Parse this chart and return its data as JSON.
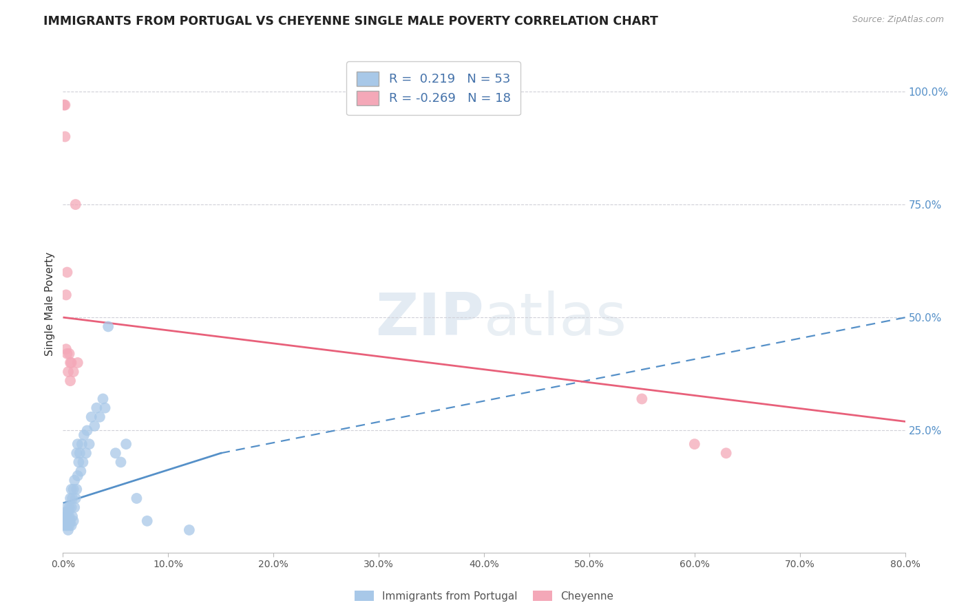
{
  "title": "IMMIGRANTS FROM PORTUGAL VS CHEYENNE SINGLE MALE POVERTY CORRELATION CHART",
  "source": "Source: ZipAtlas.com",
  "ylabel": "Single Male Poverty",
  "right_yticklabels": [
    "",
    "25.0%",
    "50.0%",
    "75.0%",
    "100.0%"
  ],
  "xlim": [
    0.0,
    0.8
  ],
  "ylim": [
    -0.02,
    1.08
  ],
  "blue_R": 0.219,
  "blue_N": 53,
  "pink_R": -0.269,
  "pink_N": 18,
  "blue_color": "#a8c8e8",
  "pink_color": "#f4a8b8",
  "trend_blue_color": "#5590c8",
  "trend_pink_color": "#e8607a",
  "legend_label_blue": "Immigrants from Portugal",
  "legend_label_pink": "Cheyenne",
  "watermark_zip": "ZIP",
  "watermark_atlas": "atlas",
  "blue_x": [
    0.001,
    0.002,
    0.002,
    0.003,
    0.003,
    0.003,
    0.004,
    0.004,
    0.004,
    0.005,
    0.005,
    0.005,
    0.006,
    0.006,
    0.006,
    0.007,
    0.007,
    0.008,
    0.008,
    0.008,
    0.009,
    0.009,
    0.01,
    0.01,
    0.011,
    0.011,
    0.012,
    0.013,
    0.013,
    0.014,
    0.014,
    0.015,
    0.016,
    0.017,
    0.018,
    0.019,
    0.02,
    0.022,
    0.023,
    0.025,
    0.027,
    0.03,
    0.032,
    0.035,
    0.038,
    0.04,
    0.043,
    0.05,
    0.055,
    0.06,
    0.07,
    0.08,
    0.12
  ],
  "blue_y": [
    0.04,
    0.05,
    0.06,
    0.04,
    0.05,
    0.07,
    0.04,
    0.06,
    0.08,
    0.03,
    0.05,
    0.07,
    0.04,
    0.06,
    0.08,
    0.05,
    0.1,
    0.04,
    0.08,
    0.12,
    0.06,
    0.1,
    0.05,
    0.12,
    0.08,
    0.14,
    0.1,
    0.12,
    0.2,
    0.15,
    0.22,
    0.18,
    0.2,
    0.16,
    0.22,
    0.18,
    0.24,
    0.2,
    0.25,
    0.22,
    0.28,
    0.26,
    0.3,
    0.28,
    0.32,
    0.3,
    0.48,
    0.2,
    0.18,
    0.22,
    0.1,
    0.05,
    0.03
  ],
  "pink_x": [
    0.001,
    0.002,
    0.002,
    0.003,
    0.003,
    0.004,
    0.004,
    0.005,
    0.006,
    0.007,
    0.007,
    0.008,
    0.01,
    0.012,
    0.014,
    0.55,
    0.6,
    0.63
  ],
  "pink_y": [
    0.97,
    0.97,
    0.9,
    0.55,
    0.43,
    0.6,
    0.42,
    0.38,
    0.42,
    0.36,
    0.4,
    0.4,
    0.38,
    0.75,
    0.4,
    0.32,
    0.22,
    0.2
  ],
  "blue_trend_x_start": 0.001,
  "blue_trend_x_solid_end": 0.15,
  "blue_trend_x_end": 0.8,
  "blue_trend_y_start": 0.09,
  "blue_trend_y_solid_end": 0.2,
  "blue_trend_y_end": 0.5,
  "pink_trend_x_start": 0.001,
  "pink_trend_x_end": 0.8,
  "pink_trend_y_start": 0.5,
  "pink_trend_y_end": 0.27
}
